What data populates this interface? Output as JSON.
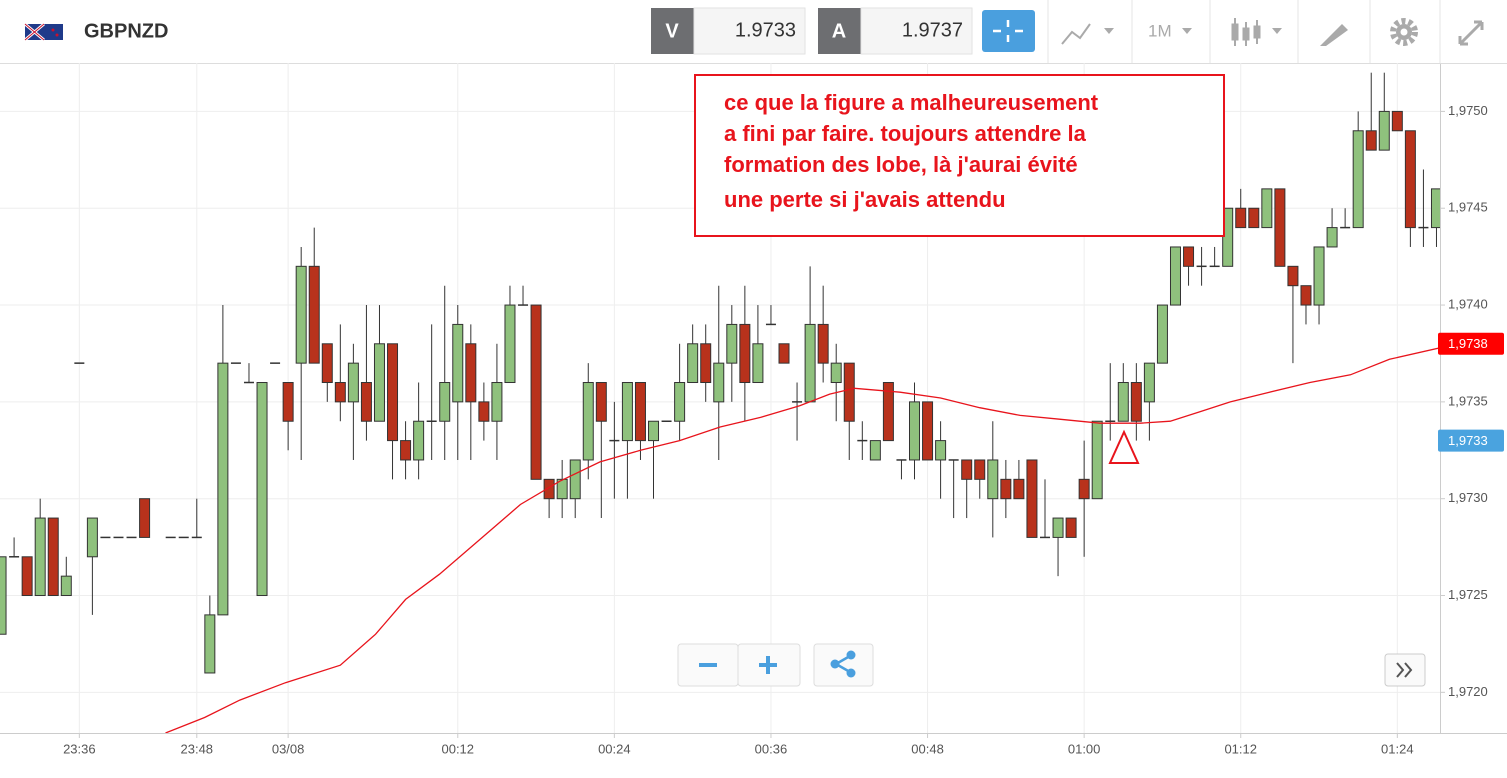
{
  "header": {
    "symbol": "GBPNZD",
    "sell_label": "V",
    "sell_price": "1.9733",
    "buy_label": "A",
    "buy_price": "1.9737",
    "timeframe": "1M"
  },
  "chart_data": {
    "type": "candlestick",
    "annotation": [
      "ce que la figure a malheureusement",
      "a fini par faire. toujours attendre la",
      "formation des lobe, là j'aurai évité",
      "une perte si j'avais attendu"
    ],
    "x": [
      0,
      1,
      2,
      3,
      4,
      5,
      6,
      7,
      8,
      9,
      10,
      11,
      13,
      14,
      15,
      16,
      17,
      18,
      19,
      20,
      21,
      22,
      23,
      24,
      25,
      26,
      27,
      28,
      29,
      30,
      31,
      32,
      33,
      34,
      35,
      36,
      37,
      38,
      39,
      40,
      41,
      42,
      43,
      44,
      45,
      46,
      47,
      48,
      49,
      50,
      51,
      52,
      53,
      54,
      55,
      56,
      57,
      58,
      59,
      60,
      61,
      62,
      63,
      64,
      65,
      66,
      67,
      68,
      69,
      70,
      71,
      72,
      73,
      74,
      75,
      76,
      77,
      78,
      79,
      80,
      81,
      82,
      83,
      84,
      85,
      86,
      87,
      88,
      89,
      90,
      91,
      92,
      93,
      94,
      95,
      96,
      97,
      98,
      99,
      100,
      101,
      102,
      103,
      104,
      105,
      106,
      107,
      108,
      109,
      110
    ],
    "open": [
      1.9723,
      1.9727,
      1.9727,
      1.9725,
      1.9729,
      1.9725,
      1.9737,
      1.9727,
      1.9728,
      1.9728,
      1.9728,
      1.973,
      1.9728,
      1.9728,
      1.9728,
      1.9721,
      1.9724,
      1.9737,
      1.9736,
      1.9725,
      1.9737,
      1.9736,
      1.9737,
      1.9742,
      1.9738,
      1.9736,
      1.9735,
      1.9736,
      1.9734,
      1.9738,
      1.9733,
      1.9732,
      1.9734,
      1.9734,
      1.9735,
      1.9738,
      1.9735,
      1.9734,
      1.9736,
      1.974,
      1.974,
      1.9731,
      1.973,
      1.973,
      1.9732,
      1.9736,
      1.9733,
      1.9733,
      1.9736,
      1.9733,
      1.9734,
      1.9734,
      1.9736,
      1.9738,
      1.9735,
      1.9737,
      1.9739,
      1.9736,
      1.9739,
      1.9738,
      1.9735,
      1.9735,
      1.9739,
      1.9736,
      1.9737,
      1.9733,
      1.9732,
      1.9736,
      1.9732,
      1.9732,
      1.9735,
      1.9732,
      1.9732,
      1.9732,
      1.9732,
      1.973,
      1.9731,
      1.9731,
      1.9732,
      1.9728,
      1.9728,
      1.9729,
      1.9731,
      1.973,
      1.9734,
      1.9734,
      1.9736,
      1.9735,
      1.9737,
      1.974,
      1.9743,
      1.9742,
      1.9742,
      1.9742,
      1.9745,
      1.9745,
      1.9744,
      1.9746,
      1.9742,
      1.9741,
      1.974,
      1.9743,
      1.9744,
      1.9744,
      1.9749,
      1.9748,
      1.975,
      1.9749,
      1.9744,
      1.9744
    ],
    "high": [
      1.9727,
      1.9728,
      1.9727,
      1.973,
      1.9729,
      1.9727,
      1.9737,
      1.9729,
      1.9728,
      1.9728,
      1.9728,
      1.973,
      1.9728,
      1.9728,
      1.973,
      1.9725,
      1.974,
      1.9737,
      1.9737,
      1.9736,
      1.9737,
      1.9736,
      1.9743,
      1.9744,
      1.9738,
      1.9739,
      1.9738,
      1.974,
      1.974,
      1.9738,
      1.9734,
      1.9736,
      1.9739,
      1.9741,
      1.974,
      1.9739,
      1.9736,
      1.9738,
      1.9741,
      1.9741,
      1.974,
      1.9731,
      1.9732,
      1.9732,
      1.9737,
      1.9736,
      1.9735,
      1.9736,
      1.9736,
      1.9734,
      1.9734,
      1.9738,
      1.9739,
      1.9739,
      1.9741,
      1.974,
      1.9741,
      1.974,
      1.974,
      1.9738,
      1.9736,
      1.9742,
      1.9741,
      1.9738,
      1.9737,
      1.9734,
      1.9733,
      1.9736,
      1.9732,
      1.9736,
      1.9735,
      1.9734,
      1.9732,
      1.9732,
      1.9732,
      1.9734,
      1.9732,
      1.9732,
      1.9732,
      1.9731,
      1.9729,
      1.9729,
      1.9733,
      1.9734,
      1.9737,
      1.9737,
      1.9737,
      1.9737,
      1.974,
      1.9743,
      1.9743,
      1.9743,
      1.9743,
      1.9745,
      1.9746,
      1.9745,
      1.9746,
      1.9746,
      1.9742,
      1.9741,
      1.9743,
      1.9745,
      1.9745,
      1.975,
      1.9752,
      1.9752,
      1.975,
      1.9749,
      1.9747,
      1.9746
    ],
    "low": [
      1.9723,
      1.9727,
      1.9725,
      1.9725,
      1.9725,
      1.9725,
      1.9737,
      1.9724,
      1.9728,
      1.9728,
      1.9728,
      1.9728,
      1.9728,
      1.9728,
      1.9728,
      1.9721,
      1.9724,
      1.9737,
      1.9736,
      1.9725,
      1.9737,
      1.97325,
      1.9732,
      1.9737,
      1.9735,
      1.9734,
      1.9732,
      1.9733,
      1.9734,
      1.9731,
      1.9731,
      1.9731,
      1.9732,
      1.9732,
      1.9732,
      1.9732,
      1.9733,
      1.9732,
      1.9736,
      1.974,
      1.9731,
      1.9729,
      1.9729,
      1.9729,
      1.9731,
      1.9729,
      1.973,
      1.973,
      1.9732,
      1.973,
      1.9734,
      1.9733,
      1.9736,
      1.9735,
      1.9732,
      1.9735,
      1.9734,
      1.9736,
      1.9739,
      1.9737,
      1.9733,
      1.9735,
      1.9736,
      1.9734,
      1.9732,
      1.9732,
      1.9732,
      1.9733,
      1.9731,
      1.9731,
      1.9732,
      1.973,
      1.9729,
      1.9729,
      1.973,
      1.9728,
      1.9729,
      1.973,
      1.9728,
      1.9728,
      1.9726,
      1.9728,
      1.9727,
      1.973,
      1.9733,
      1.9734,
      1.9733,
      1.9733,
      1.9737,
      1.974,
      1.9741,
      1.9741,
      1.9742,
      1.9742,
      1.9744,
      1.9744,
      1.9744,
      1.9742,
      1.9737,
      1.9739,
      1.9739,
      1.9743,
      1.9744,
      1.9744,
      1.9748,
      1.9748,
      1.9749,
      1.9743,
      1.9743,
      1.9743
    ],
    "close": [
      1.9727,
      1.9727,
      1.9725,
      1.9729,
      1.9725,
      1.9726,
      1.9737,
      1.9729,
      1.9728,
      1.9728,
      1.9728,
      1.9728,
      1.9728,
      1.9728,
      1.9728,
      1.9724,
      1.9737,
      1.9737,
      1.9736,
      1.9736,
      1.9737,
      1.9734,
      1.9742,
      1.9737,
      1.9736,
      1.9735,
      1.9737,
      1.9734,
      1.9738,
      1.9733,
      1.9732,
      1.9734,
      1.9734,
      1.9736,
      1.9739,
      1.9735,
      1.9734,
      1.9736,
      1.974,
      1.974,
      1.9731,
      1.973,
      1.9731,
      1.9732,
      1.9736,
      1.9734,
      1.9733,
      1.9736,
      1.9733,
      1.9734,
      1.9734,
      1.9736,
      1.9738,
      1.9736,
      1.9737,
      1.9739,
      1.9736,
      1.9738,
      1.9739,
      1.9737,
      1.9735,
      1.9739,
      1.9737,
      1.9737,
      1.9734,
      1.9733,
      1.9733,
      1.9733,
      1.9732,
      1.9735,
      1.9732,
      1.9733,
      1.9732,
      1.9731,
      1.9731,
      1.9732,
      1.973,
      1.973,
      1.9728,
      1.9728,
      1.9729,
      1.9728,
      1.973,
      1.9734,
      1.9734,
      1.9736,
      1.9734,
      1.9737,
      1.974,
      1.9743,
      1.9742,
      1.9742,
      1.9742,
      1.9745,
      1.9744,
      1.9744,
      1.9746,
      1.9742,
      1.9741,
      1.974,
      1.9743,
      1.9744,
      1.9744,
      1.9749,
      1.9748,
      1.975,
      1.9749,
      1.9744,
      1.9744,
      1.9746
    ],
    "up_color": "#8fc17d",
    "down_color": "#b8321c",
    "moving_average": {
      "color": "#e8141c",
      "x": [
        12.6,
        15.6,
        18.3,
        21.8,
        26.0,
        28.7,
        31.0,
        33.6,
        36.7,
        39.8,
        42.8,
        45.9,
        49.0,
        52.0,
        55.1,
        58.2,
        61.2,
        63.5,
        65.4,
        68.9,
        72.0,
        75.0,
        78.1,
        81.2,
        84.2,
        87.3,
        89.6,
        91.9,
        94.2,
        97.2,
        100.3,
        103.4,
        106.4,
        110.3
      ],
      "values": [
        1.97179,
        1.97187,
        1.97196,
        1.97205,
        1.97214,
        1.9723,
        1.97248,
        1.97261,
        1.97279,
        1.97297,
        1.97309,
        1.97319,
        1.97325,
        1.9733,
        1.97337,
        1.97342,
        1.97348,
        1.97354,
        1.97357,
        1.97355,
        1.97352,
        1.97347,
        1.97343,
        1.97341,
        1.97339,
        1.97339,
        1.9734,
        1.97345,
        1.9735,
        1.97355,
        1.9736,
        1.97364,
        1.97372,
        1.97378
      ]
    },
    "price_labels": [
      {
        "value": 1.9738,
        "label": "1,9738",
        "color": "#ff0000"
      },
      {
        "value": 1.9733,
        "label": "1,9733",
        "color": "#4aa3df"
      }
    ],
    "xlim": [
      -0.08,
      110.27
    ],
    "ylim": [
      1.97179,
      1.97525
    ],
    "xticks": [
      {
        "value": 6,
        "label": "23:36"
      },
      {
        "value": 15,
        "label": "23:48"
      },
      {
        "value": 22,
        "label": "03/08"
      },
      {
        "value": 35,
        "label": "00:12"
      },
      {
        "value": 47,
        "label": "00:24"
      },
      {
        "value": 59,
        "label": "00:36"
      },
      {
        "value": 71,
        "label": "00:48"
      },
      {
        "value": 83,
        "label": "01:00"
      },
      {
        "value": 95,
        "label": "01:12"
      },
      {
        "value": 107,
        "label": "01:24"
      }
    ],
    "yticks": [
      {
        "value": 1.972,
        "label": "1,9720"
      },
      {
        "value": 1.9725,
        "label": "1,9725"
      },
      {
        "value": 1.973,
        "label": "1,9730"
      },
      {
        "value": 1.9735,
        "label": "1,9735"
      },
      {
        "value": 1.974,
        "label": "1,9740"
      },
      {
        "value": 1.9745,
        "label": "1,9745"
      },
      {
        "value": 1.975,
        "label": "1,9750"
      }
    ],
    "grid": true
  }
}
